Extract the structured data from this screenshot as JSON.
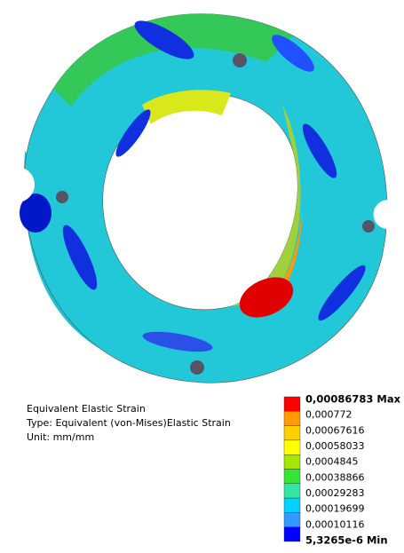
{
  "result": {
    "title": "Equivalent Elastic Strain",
    "type_line": "Type: Equivalent (von-Mises)Elastic Strain",
    "unit_line": "Unit: mm/mm"
  },
  "legend": {
    "labels": [
      "0,00086783 Max",
      "0,000772",
      "0,00067616",
      "0,00058033",
      "0,0004845",
      "0,00038866",
      "0,00029283",
      "0,00019699",
      "0,00010116",
      "5,3265e-6 Min"
    ],
    "colors": [
      "#ff0000",
      "#ff9a00",
      "#ffcf00",
      "#ffff00",
      "#a6e600",
      "#33e633",
      "#33e6a6",
      "#00d2ff",
      "#3399ff",
      "#0000ff"
    ]
  }
}
